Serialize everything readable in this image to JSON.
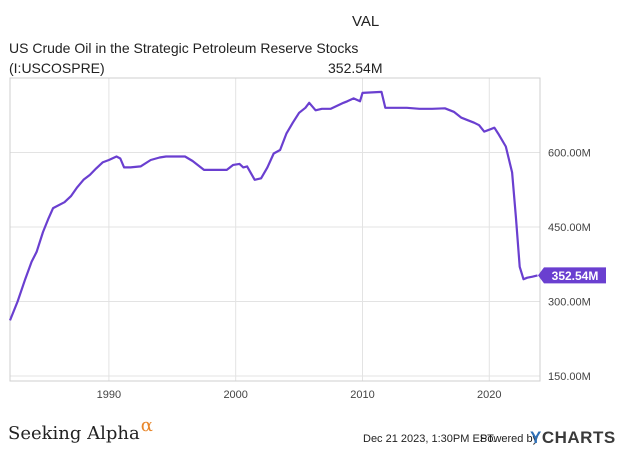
{
  "header": {
    "symbol": "VAL",
    "title": "US Crude Oil in the Strategic Petroleum Reserve Stocks",
    "ticker": "(I:USCOSPRE)",
    "last_value": "352.54M"
  },
  "chart_data": {
    "type": "line",
    "title": "US Crude Oil in the Strategic Petroleum Reserve Stocks",
    "xlabel": "",
    "ylabel": "",
    "xlim": [
      1982.2,
      2024.0
    ],
    "ylim": [
      140,
      750
    ],
    "x_ticks": [
      1990,
      2000,
      2010,
      2020
    ],
    "x_tick_labels": [
      "1990",
      "2000",
      "2010",
      "2020"
    ],
    "y_ticks": [
      150,
      300,
      450,
      600
    ],
    "y_tick_labels": [
      "150.00M",
      "300.00M",
      "450.00M",
      "600.00M"
    ],
    "grid": true,
    "unit": "M",
    "color": "#6a3fd0",
    "last_label": "352.54M",
    "series": [
      {
        "values_x": [
          1982.2,
          1982.8,
          1983.4,
          1983.9,
          1984.3,
          1984.8,
          1985.2,
          1985.6,
          1986.5,
          1987.0,
          1987.5,
          1988.0,
          1988.5,
          1989.0,
          1989.5,
          1990.0,
          1990.6,
          1990.9,
          1991.2,
          1991.7,
          1992.5,
          1993.3,
          1994.0,
          1994.5,
          1995.0,
          1996.0,
          1996.6,
          1997.5,
          1998.5,
          1999.3,
          1999.8,
          2000.3,
          2000.6,
          2000.9,
          2001.5,
          2002.0,
          2002.5,
          2003.0,
          2003.5,
          2004.0,
          2004.5,
          2005.0,
          2005.5,
          2005.8,
          2006.3,
          2006.8,
          2007.5,
          2008.5,
          2008.8,
          2009.3,
          2009.8,
          2010.0,
          2011.5,
          2011.8,
          2013.5,
          2014.5,
          2015.5,
          2016.5,
          2017.2,
          2017.8,
          2018.3,
          2018.8,
          2019.2,
          2019.6,
          2019.9,
          2020.4,
          2020.7,
          2021.3,
          2021.8,
          2022.1,
          2022.4,
          2022.7,
          2023.0,
          2023.4,
          2023.8
        ],
        "values_y": [
          262,
          300,
          345,
          380,
          400,
          440,
          465,
          488,
          500,
          512,
          530,
          545,
          555,
          568,
          580,
          585,
          592,
          588,
          570,
          570,
          572,
          585,
          590,
          592,
          592,
          592,
          583,
          565,
          565,
          565,
          575,
          577,
          570,
          572,
          545,
          548,
          570,
          598,
          605,
          638,
          660,
          680,
          690,
          700,
          685,
          688,
          688,
          700,
          703,
          709,
          703,
          720,
          722,
          690,
          690,
          688,
          688,
          689,
          682,
          670,
          665,
          660,
          655,
          642,
          645,
          650,
          638,
          612,
          560,
          470,
          370,
          345,
          348,
          350,
          352.54
        ]
      }
    ]
  },
  "footer": {
    "brand": "Seeking Alpha",
    "brand_symbol": "α",
    "timestamp": "Dec 21 2023, 1:30PM EST.",
    "powered_by": "Powered by",
    "logo_y": "Y",
    "logo_text": "CHARTS"
  }
}
